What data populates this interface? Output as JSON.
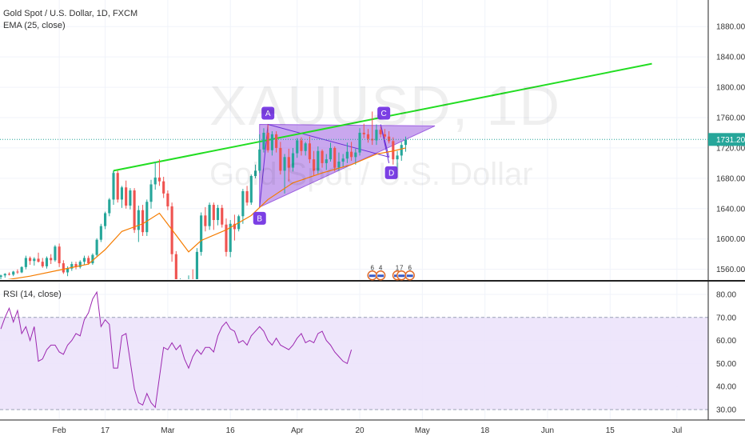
{
  "header": {
    "symbol_line": "Gold Spot / U.S. Dollar, 1D, FXCM",
    "ema_line": "EMA (25, close)",
    "rsi_line": "RSI (14, close)"
  },
  "watermark": {
    "symbol": "XAUUSD, 1D",
    "name": "Gold Spot / U.S. Dollar"
  },
  "colors": {
    "up": "#26a69a",
    "down": "#ef5350",
    "ema": "#f57c00",
    "trend": "#22dd22",
    "pattern_fill": "#9c5fe0",
    "pattern_label": "#7b3fe4",
    "rsi_line": "#9c27b0",
    "rsi_band": "#ece3fb",
    "current_price_line": "#26a69a"
  },
  "chart_data": [
    {
      "type": "candlestick",
      "name": "price",
      "y_ticks": [
        1560,
        1600,
        1640,
        1680,
        1720,
        1760,
        1800,
        1840,
        1880
      ],
      "ylim": [
        1547,
        1915
      ],
      "x_ticks": [
        {
          "label": "Feb",
          "x": 32
        },
        {
          "label": "17",
          "x": 43
        },
        {
          "label": "Mar",
          "x": 58
        },
        {
          "label": "16",
          "x": 73
        },
        {
          "label": "Apr",
          "x": 89
        },
        {
          "label": "20",
          "x": 104
        },
        {
          "label": "May",
          "x": 119
        },
        {
          "label": "18",
          "x": 134
        },
        {
          "label": "Jun",
          "x": 149
        },
        {
          "label": "15",
          "x": 164
        },
        {
          "label": "Jul",
          "x": 180
        }
      ],
      "xlim": [
        17.8,
        187.5
      ],
      "current_price": 1731.2,
      "candles": [
        [
          18,
          1550,
          1553,
          1546,
          1552
        ],
        [
          19,
          1552,
          1555,
          1549,
          1554
        ],
        [
          20,
          1554,
          1556,
          1552,
          1553
        ],
        [
          21,
          1553,
          1558,
          1551,
          1557
        ],
        [
          22,
          1557,
          1560,
          1554,
          1556
        ],
        [
          23,
          1556,
          1564,
          1555,
          1563
        ],
        [
          24,
          1563,
          1578,
          1560,
          1575
        ],
        [
          25,
          1575,
          1577,
          1566,
          1571
        ],
        [
          26,
          1571,
          1576,
          1565,
          1574
        ],
        [
          27,
          1574,
          1582,
          1569,
          1570
        ],
        [
          28,
          1570,
          1575,
          1562,
          1564
        ],
        [
          29,
          1564,
          1577,
          1561,
          1575
        ],
        [
          30,
          1575,
          1580,
          1567,
          1572
        ],
        [
          31,
          1572,
          1592,
          1570,
          1590
        ],
        [
          32,
          1590,
          1594,
          1563,
          1568
        ],
        [
          33,
          1568,
          1572,
          1554,
          1556
        ],
        [
          34,
          1556,
          1564,
          1551,
          1561
        ],
        [
          35,
          1561,
          1570,
          1558,
          1567
        ],
        [
          36,
          1567,
          1570,
          1560,
          1563
        ],
        [
          37,
          1563,
          1572,
          1561,
          1570
        ],
        [
          38,
          1570,
          1578,
          1566,
          1575
        ],
        [
          39,
          1575,
          1578,
          1566,
          1568
        ],
        [
          40,
          1568,
          1581,
          1566,
          1579
        ],
        [
          41,
          1579,
          1601,
          1577,
          1599
        ],
        [
          42,
          1599,
          1620,
          1596,
          1617
        ],
        [
          43,
          1617,
          1636,
          1613,
          1634
        ],
        [
          44,
          1634,
          1654,
          1630,
          1652
        ],
        [
          45,
          1652,
          1690,
          1645,
          1687
        ],
        [
          46,
          1687,
          1690,
          1648,
          1652
        ],
        [
          47,
          1652,
          1670,
          1641,
          1668
        ],
        [
          48,
          1668,
          1677,
          1640,
          1644
        ],
        [
          49,
          1644,
          1667,
          1639,
          1664
        ],
        [
          50,
          1664,
          1667,
          1608,
          1612
        ],
        [
          51,
          1612,
          1644,
          1596,
          1638
        ],
        [
          52,
          1638,
          1645,
          1604,
          1609
        ],
        [
          53,
          1609,
          1652,
          1604,
          1649
        ],
        [
          54,
          1649,
          1678,
          1640,
          1672
        ],
        [
          55,
          1672,
          1702,
          1665,
          1681
        ],
        [
          56,
          1681,
          1705,
          1670,
          1676
        ],
        [
          57,
          1676,
          1682,
          1654,
          1660
        ],
        [
          58,
          1660,
          1664,
          1638,
          1643
        ],
        [
          59,
          1643,
          1648,
          1570,
          1580
        ],
        [
          60,
          1580,
          1584,
          1515,
          1525
        ],
        [
          61,
          1525,
          1548,
          1484,
          1539
        ],
        [
          62,
          1539,
          1540,
          1460,
          1475
        ],
        [
          63,
          1475,
          1552,
          1470,
          1547
        ],
        [
          64,
          1547,
          1560,
          1517,
          1529
        ],
        [
          65,
          1529,
          1588,
          1526,
          1583
        ],
        [
          66,
          1583,
          1635,
          1578,
          1631
        ],
        [
          67,
          1631,
          1642,
          1610,
          1617
        ],
        [
          68,
          1617,
          1648,
          1612,
          1645
        ],
        [
          69,
          1645,
          1648,
          1612,
          1625
        ],
        [
          70,
          1625,
          1645,
          1618,
          1641
        ],
        [
          71,
          1641,
          1645,
          1615,
          1619
        ],
        [
          72,
          1619,
          1627,
          1577,
          1583
        ],
        [
          73,
          1583,
          1625,
          1576,
          1620
        ],
        [
          74,
          1620,
          1632,
          1598,
          1613
        ],
        [
          75,
          1613,
          1632,
          1610,
          1630
        ],
        [
          76,
          1630,
          1666,
          1620,
          1663
        ],
        [
          77,
          1663,
          1670,
          1644,
          1648
        ],
        [
          78,
          1648,
          1685,
          1645,
          1683
        ],
        [
          79,
          1683,
          1698,
          1680,
          1690
        ],
        [
          80,
          1690,
          1738,
          1687,
          1718
        ],
        [
          81,
          1718,
          1746,
          1714,
          1740
        ],
        [
          82,
          1740,
          1751,
          1714,
          1717
        ],
        [
          83,
          1717,
          1742,
          1710,
          1738
        ],
        [
          84,
          1738,
          1742,
          1714,
          1720
        ],
        [
          85,
          1720,
          1728,
          1685,
          1690
        ],
        [
          86,
          1690,
          1712,
          1660,
          1708
        ],
        [
          87,
          1708,
          1719,
          1676,
          1694
        ],
        [
          88,
          1694,
          1720,
          1689,
          1713
        ],
        [
          89,
          1713,
          1733,
          1707,
          1730
        ],
        [
          90,
          1730,
          1734,
          1710,
          1716
        ],
        [
          91,
          1716,
          1728,
          1710,
          1726
        ],
        [
          92,
          1726,
          1735,
          1700,
          1705
        ],
        [
          93,
          1705,
          1716,
          1683,
          1690
        ],
        [
          94,
          1690,
          1722,
          1686,
          1716
        ],
        [
          95,
          1716,
          1718,
          1694,
          1700
        ],
        [
          96,
          1700,
          1712,
          1691,
          1705
        ],
        [
          97,
          1705,
          1727,
          1702,
          1720
        ],
        [
          98,
          1720,
          1722,
          1689,
          1694
        ],
        [
          99,
          1694,
          1714,
          1690,
          1702
        ],
        [
          100,
          1702,
          1712,
          1695,
          1706
        ],
        [
          101,
          1706,
          1727,
          1700,
          1715
        ],
        [
          102,
          1715,
          1728,
          1703,
          1708
        ],
        [
          103,
          1708,
          1719,
          1698,
          1714
        ],
        [
          104,
          1714,
          1746,
          1710,
          1740
        ],
        [
          105,
          1740,
          1752,
          1733,
          1738
        ],
        [
          106,
          1738,
          1745,
          1727,
          1732
        ],
        [
          107,
          1732,
          1768,
          1724,
          1730
        ],
        [
          108,
          1730,
          1751,
          1724,
          1744
        ],
        [
          109,
          1744,
          1748,
          1734,
          1738
        ],
        [
          110,
          1738,
          1745,
          1732,
          1735
        ],
        [
          111,
          1735,
          1742,
          1726,
          1729
        ],
        [
          112,
          1729,
          1734,
          1698,
          1705
        ],
        [
          113,
          1705,
          1716,
          1692,
          1710
        ],
        [
          114,
          1710,
          1728,
          1703,
          1724
        ],
        [
          115,
          1724,
          1735,
          1715,
          1731
        ]
      ],
      "ema": {
        "name": "EMA (25, close)",
        "points": [
          [
            18,
            1545
          ],
          [
            25,
            1551
          ],
          [
            32,
            1559
          ],
          [
            39,
            1567
          ],
          [
            43,
            1586
          ],
          [
            47,
            1610
          ],
          [
            52,
            1620
          ],
          [
            56,
            1634
          ],
          [
            60,
            1605
          ],
          [
            63,
            1583
          ],
          [
            66,
            1598
          ],
          [
            72,
            1612
          ],
          [
            78,
            1631
          ],
          [
            82,
            1652
          ],
          [
            88,
            1674
          ],
          [
            95,
            1687
          ],
          [
            102,
            1698
          ],
          [
            108,
            1712
          ],
          [
            112,
            1716
          ],
          [
            115,
            1720
          ]
        ]
      },
      "trendline": {
        "from": [
          45,
          1690
        ],
        "to": [
          174,
          1831
        ]
      },
      "pattern": {
        "points": [
          {
            "label": "A",
            "x": 82,
            "y": 1751
          },
          {
            "label": "B",
            "x": 80,
            "y": 1642
          },
          {
            "label": "C",
            "x": 109,
            "y": 1751
          },
          {
            "label": "D",
            "x": 111,
            "y": 1700
          }
        ],
        "apex": [
          122,
          1749
        ]
      },
      "markers": [
        {
          "x": 107,
          "count": "6"
        },
        {
          "x": 109,
          "count": "4"
        },
        {
          "x": 113,
          "count": "1"
        },
        {
          "x": 114,
          "count": "7"
        },
        {
          "x": 116,
          "count": "6"
        }
      ]
    },
    {
      "type": "line",
      "name": "RSI (14, close)",
      "y_ticks": [
        30,
        40,
        50,
        60,
        70,
        80
      ],
      "ylim": [
        25.5,
        84.5
      ],
      "band": [
        30,
        70
      ],
      "values": [
        [
          18,
          65
        ],
        [
          19,
          70
        ],
        [
          20,
          74
        ],
        [
          21,
          68
        ],
        [
          22,
          73
        ],
        [
          23,
          63
        ],
        [
          24,
          66
        ],
        [
          25,
          60
        ],
        [
          26,
          66
        ],
        [
          27,
          51
        ],
        [
          28,
          52
        ],
        [
          29,
          56
        ],
        [
          30,
          58
        ],
        [
          31,
          58
        ],
        [
          32,
          55
        ],
        [
          33,
          54
        ],
        [
          34,
          58
        ],
        [
          35,
          60
        ],
        [
          36,
          63
        ],
        [
          37,
          62
        ],
        [
          38,
          69
        ],
        [
          39,
          72
        ],
        [
          40,
          78
        ],
        [
          41,
          81
        ],
        [
          42,
          66
        ],
        [
          43,
          69
        ],
        [
          44,
          67
        ],
        [
          45,
          48
        ],
        [
          46,
          48
        ],
        [
          47,
          62
        ],
        [
          48,
          63
        ],
        [
          49,
          51
        ],
        [
          50,
          39
        ],
        [
          51,
          33
        ],
        [
          52,
          32
        ],
        [
          53,
          37
        ],
        [
          54,
          33
        ],
        [
          55,
          31
        ],
        [
          56,
          44
        ],
        [
          57,
          57
        ],
        [
          58,
          56
        ],
        [
          59,
          59
        ],
        [
          60,
          56
        ],
        [
          61,
          58
        ],
        [
          62,
          52
        ],
        [
          63,
          48
        ],
        [
          64,
          53
        ],
        [
          65,
          56
        ],
        [
          66,
          54
        ],
        [
          67,
          57
        ],
        [
          68,
          57
        ],
        [
          69,
          55
        ],
        [
          70,
          62
        ],
        [
          71,
          66
        ],
        [
          72,
          68
        ],
        [
          73,
          65
        ],
        [
          74,
          64
        ],
        [
          75,
          59
        ],
        [
          76,
          60
        ],
        [
          77,
          58
        ],
        [
          78,
          62
        ],
        [
          79,
          64
        ],
        [
          80,
          66
        ],
        [
          81,
          64
        ],
        [
          82,
          60
        ],
        [
          83,
          58
        ],
        [
          84,
          61
        ],
        [
          85,
          58
        ],
        [
          86,
          57
        ],
        [
          87,
          56
        ],
        [
          88,
          58
        ],
        [
          89,
          61
        ],
        [
          90,
          63
        ],
        [
          91,
          59
        ],
        [
          92,
          60
        ],
        [
          93,
          59
        ],
        [
          94,
          63
        ],
        [
          95,
          64
        ],
        [
          96,
          60
        ],
        [
          97,
          58
        ],
        [
          98,
          55
        ],
        [
          99,
          53
        ],
        [
          100,
          51
        ],
        [
          101,
          50
        ],
        [
          102,
          56
        ]
      ]
    }
  ]
}
